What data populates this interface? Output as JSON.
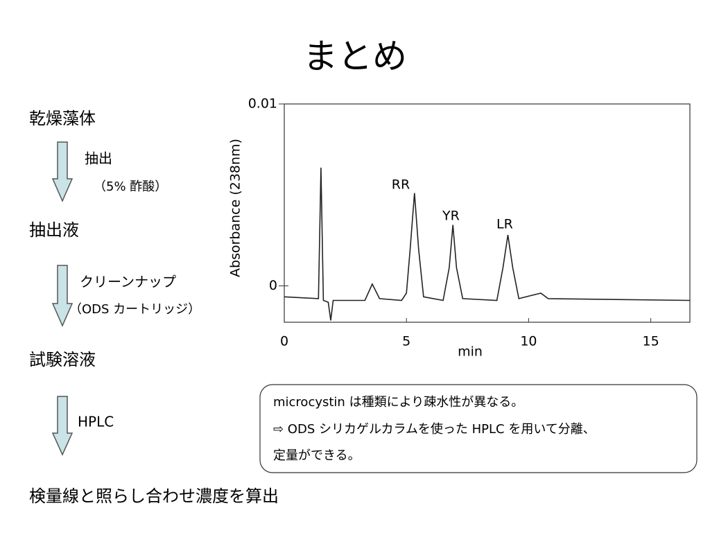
{
  "title": "まとめ",
  "flow": {
    "steps": [
      "乾燥藻体",
      "抽出液",
      "試験溶液",
      "検量線と照らし合わせ濃度を算出"
    ],
    "arrows": [
      [
        "抽出",
        "（5% 酢酸）"
      ],
      [
        "クリーンナップ",
        "（ODS カートリッジ）"
      ],
      [
        "HPLC"
      ]
    ]
  },
  "box": {
    "lines": [
      "microcystin は種類により疎水性が異なる。",
      "⇨ ODS シリカゲルカラムを使った HPLC を用いて分離、",
      "定量ができる。"
    ]
  },
  "chart_data": {
    "type": "line",
    "xlabel": "min",
    "ylabel": "Absorbance (238nm)",
    "xlim": [
      0,
      16.6
    ],
    "ylim": [
      -0.002,
      0.01
    ],
    "xticks": [
      0,
      5,
      10,
      15
    ],
    "yticks": [
      0,
      0.01
    ],
    "annotations": [
      "RR",
      "YR",
      "LR"
    ],
    "series": [
      {
        "color": "#222222",
        "x": [
          0,
          1.4,
          1.5,
          1.6,
          1.8,
          1.9,
          2.0,
          3.3,
          3.6,
          3.9,
          4.8,
          5.0,
          5.15,
          5.33,
          5.5,
          5.7,
          6.5,
          6.75,
          6.9,
          7.05,
          7.3,
          8.7,
          8.95,
          9.15,
          9.35,
          9.6,
          10.5,
          10.8,
          16.6
        ],
        "values": [
          -0.0006,
          -0.0007,
          0.0065,
          -0.0008,
          -0.0009,
          -0.0019,
          -0.0008,
          -0.0008,
          0.0001,
          -0.0007,
          -0.0008,
          -0.0004,
          0.002,
          0.0051,
          0.002,
          -0.0006,
          -0.0008,
          0.001,
          0.00335,
          0.001,
          -0.0007,
          -0.0008,
          0.001,
          0.0028,
          0.001,
          -0.0007,
          -0.0004,
          -0.0007,
          -0.0008
        ]
      }
    ]
  }
}
